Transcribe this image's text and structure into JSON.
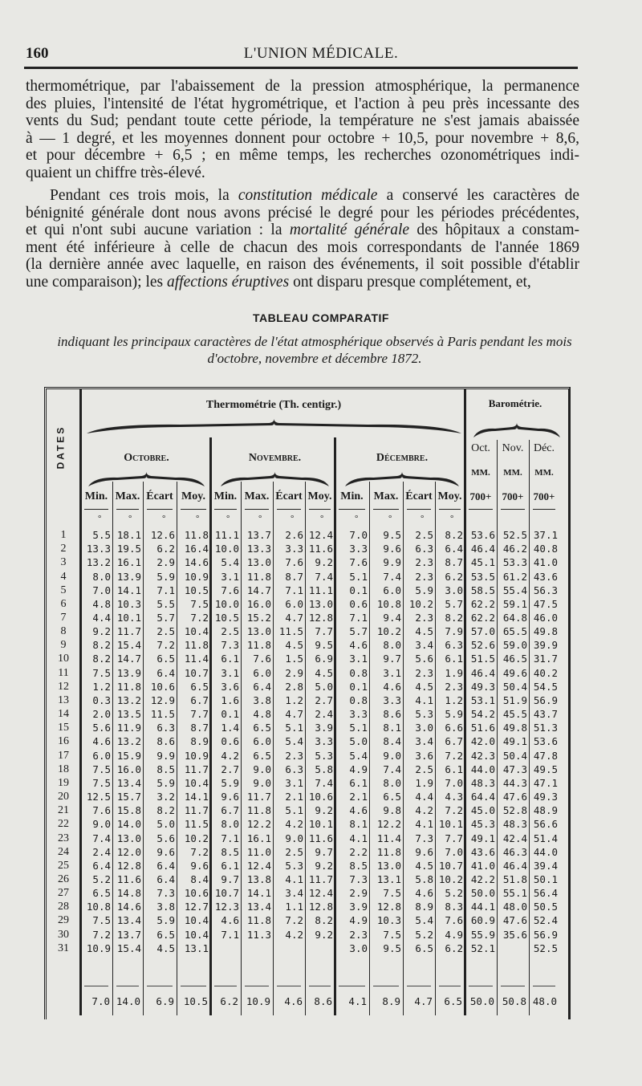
{
  "header": {
    "page_number": "160",
    "running_title": "L'UNION MÉDICALE."
  },
  "paragraph1": [
    "thermométrique, par l'abaissement de la pression atmosphérique, la permanence",
    "des pluies, l'intensité de l'état hygrométrique, et l'action à peu près incessante des",
    "vents du Sud; pendant toute cette période, la température ne s'est jamais abaissée",
    "à — 1 degré, et les moyennes donnent pour octobre + 10,5, pour novembre + 8,6,",
    "et pour décembre + 6,5 ; en même temps, les recherches ozonométriques indi-",
    "quaient un chiffre très-élevé."
  ],
  "paragraph2": [
    {
      "before": "Pendant ces trois mois, la ",
      "em": "constitution médicale",
      "after": " a conservé les caractères de"
    },
    {
      "before": "bénignité générale dont nous avons précisé le degré pour les périodes précédentes,",
      "em": "",
      "after": ""
    },
    {
      "before": "et qui n'ont subi aucune variation : la ",
      "em": "mortalité générale",
      "after": " des hôpitaux a constam-"
    },
    {
      "before": "ment été inférieure à celle de chacun des mois correspondants de l'année 1869",
      "em": "",
      "after": ""
    },
    {
      "before": "(la dernière année avec laquelle, en raison des événements, il soit possible d'établir",
      "em": "",
      "after": ""
    },
    {
      "before": "une comparaison); les ",
      "em": "affections éruptives",
      "after": " ont disparu presque complétement, et,"
    }
  ],
  "table_title": "TABLEAU COMPARATIF",
  "table_subtitle": [
    "indiquant les principaux caractères de l'état atmosphérique observés à Paris pendant les mois",
    "d'octobre, novembre et décembre 1872."
  ],
  "table": {
    "dates_label": "DATES",
    "thermo_label": "Thermométrie (Th. centigr.)",
    "baro_label": "Barométrie.",
    "months": [
      "Octobre.",
      "Novembre.",
      "Décembre."
    ],
    "baro_months": [
      "Oct.",
      "Nov.",
      "Déc."
    ],
    "baro_unit": "MM.",
    "baro_base": "700+",
    "thermo_cols": [
      "Min.",
      "Max.",
      "Écart",
      "Moy."
    ],
    "degree_mark": "°",
    "rows": [
      [
        "1",
        "5.5",
        "18.1",
        "12.6",
        "11.8",
        "11.1",
        "13.7",
        "2.6",
        "12.4",
        "7.0",
        "9.5",
        "2.5",
        "8.2",
        "53.6",
        "52.5",
        "37.1"
      ],
      [
        "2",
        "13.3",
        "19.5",
        "6.2",
        "16.4",
        "10.0",
        "13.3",
        "3.3",
        "11.6",
        "3.3",
        "9.6",
        "6.3",
        "6.4",
        "46.4",
        "46.2",
        "40.8"
      ],
      [
        "3",
        "13.2",
        "16.1",
        "2.9",
        "14.6",
        "5.4",
        "13.0",
        "7.6",
        "9.2",
        "7.6",
        "9.9",
        "2.3",
        "8.7",
        "45.1",
        "53.3",
        "41.0"
      ],
      [
        "4",
        "8.0",
        "13.9",
        "5.9",
        "10.9",
        "3.1",
        "11.8",
        "8.7",
        "7.4",
        "5.1",
        "7.4",
        "2.3",
        "6.2",
        "53.5",
        "61.2",
        "43.6"
      ],
      [
        "5",
        "7.0",
        "14.1",
        "7.1",
        "10.5",
        "7.6",
        "14.7",
        "7.1",
        "11.1",
        "0.1",
        "6.0",
        "5.9",
        "3.0",
        "58.5",
        "55.4",
        "56.3"
      ],
      [
        "6",
        "4.8",
        "10.3",
        "5.5",
        "7.5",
        "10.0",
        "16.0",
        "6.0",
        "13.0",
        "0.6",
        "10.8",
        "10.2",
        "5.7",
        "62.2",
        "59.1",
        "47.5"
      ],
      [
        "7",
        "4.4",
        "10.1",
        "5.7",
        "7.2",
        "10.5",
        "15.2",
        "4.7",
        "12.8",
        "7.1",
        "9.4",
        "2.3",
        "8.2",
        "62.2",
        "64.8",
        "46.0"
      ],
      [
        "8",
        "9.2",
        "11.7",
        "2.5",
        "10.4",
        "2.5",
        "13.0",
        "11.5",
        "7.7",
        "5.7",
        "10.2",
        "4.5",
        "7.9",
        "57.0",
        "65.5",
        "49.8"
      ],
      [
        "9",
        "8.2",
        "15.4",
        "7.2",
        "11.8",
        "7.3",
        "11.8",
        "4.5",
        "9.5",
        "4.6",
        "8.0",
        "3.4",
        "6.3",
        "52.6",
        "59.0",
        "39.9"
      ],
      [
        "10",
        "8.2",
        "14.7",
        "6.5",
        "11.4",
        "6.1",
        "7.6",
        "1.5",
        "6.9",
        "3.1",
        "9.7",
        "5.6",
        "6.1",
        "51.5",
        "46.5",
        "31.7"
      ],
      [
        "11",
        "7.5",
        "13.9",
        "6.4",
        "10.7",
        "3.1",
        "6.0",
        "2.9",
        "4.5",
        "0.8",
        "3.1",
        "2.3",
        "1.9",
        "46.4",
        "49.6",
        "40.2"
      ],
      [
        "12",
        "1.2",
        "11.8",
        "10.6",
        "6.5",
        "3.6",
        "6.4",
        "2.8",
        "5.0",
        "0.1",
        "4.6",
        "4.5",
        "2.3",
        "49.3",
        "50.4",
        "54.5"
      ],
      [
        "13",
        "0.3",
        "13.2",
        "12.9",
        "6.7",
        "1.6",
        "3.8",
        "1.2",
        "2.7",
        "0.8",
        "3.3",
        "4.1",
        "1.2",
        "53.1",
        "51.9",
        "56.9"
      ],
      [
        "14",
        "2.0",
        "13.5",
        "11.5",
        "7.7",
        "0.1",
        "4.8",
        "4.7",
        "2.4",
        "3.3",
        "8.6",
        "5.3",
        "5.9",
        "54.2",
        "45.5",
        "43.7"
      ],
      [
        "15",
        "5.6",
        "11.9",
        "6.3",
        "8.7",
        "1.4",
        "6.5",
        "5.1",
        "3.9",
        "5.1",
        "8.1",
        "3.0",
        "6.6",
        "51.6",
        "49.8",
        "51.3"
      ],
      [
        "16",
        "4.6",
        "13.2",
        "8.6",
        "8.9",
        "0.6",
        "6.0",
        "5.4",
        "3.3",
        "5.0",
        "8.4",
        "3.4",
        "6.7",
        "42.0",
        "49.1",
        "53.6"
      ],
      [
        "17",
        "6.0",
        "15.9",
        "9.9",
        "10.9",
        "4.2",
        "6.5",
        "2.3",
        "5.3",
        "5.4",
        "9.0",
        "3.6",
        "7.2",
        "42.3",
        "50.4",
        "47.8"
      ],
      [
        "18",
        "7.5",
        "16.0",
        "8.5",
        "11.7",
        "2.7",
        "9.0",
        "6.3",
        "5.8",
        "4.9",
        "7.4",
        "2.5",
        "6.1",
        "44.0",
        "47.3",
        "49.5"
      ],
      [
        "19",
        "7.5",
        "13.4",
        "5.9",
        "10.4",
        "5.9",
        "9.0",
        "3.1",
        "7.4",
        "6.1",
        "8.0",
        "1.9",
        "7.0",
        "48.3",
        "44.3",
        "47.1"
      ],
      [
        "20",
        "12.5",
        "15.7",
        "3.2",
        "14.1",
        "9.6",
        "11.7",
        "2.1",
        "10.6",
        "2.1",
        "6.5",
        "4.4",
        "4.3",
        "64.4",
        "47.6",
        "49.3"
      ],
      [
        "21",
        "7.6",
        "15.8",
        "8.2",
        "11.7",
        "6.7",
        "11.8",
        "5.1",
        "9.2",
        "4.6",
        "9.8",
        "4.2",
        "7.2",
        "45.0",
        "52.8",
        "48.9"
      ],
      [
        "22",
        "9.0",
        "14.0",
        "5.0",
        "11.5",
        "8.0",
        "12.2",
        "4.2",
        "10.1",
        "8.1",
        "12.2",
        "4.1",
        "10.1",
        "45.3",
        "48.3",
        "56.6"
      ],
      [
        "23",
        "7.4",
        "13.0",
        "5.6",
        "10.2",
        "7.1",
        "16.1",
        "9.0",
        "11.6",
        "4.1",
        "11.4",
        "7.3",
        "7.7",
        "49.1",
        "42.4",
        "51.4"
      ],
      [
        "24",
        "2.4",
        "12.0",
        "9.6",
        "7.2",
        "8.5",
        "11.0",
        "2.5",
        "9.7",
        "2.2",
        "11.8",
        "9.6",
        "7.0",
        "43.6",
        "46.3",
        "44.0"
      ],
      [
        "25",
        "6.4",
        "12.8",
        "6.4",
        "9.6",
        "6.1",
        "12.4",
        "5.3",
        "9.2",
        "8.5",
        "13.0",
        "4.5",
        "10.7",
        "41.0",
        "46.4",
        "39.4"
      ],
      [
        "26",
        "5.2",
        "11.6",
        "6.4",
        "8.4",
        "9.7",
        "13.8",
        "4.1",
        "11.7",
        "7.3",
        "13.1",
        "5.8",
        "10.2",
        "42.2",
        "51.8",
        "50.1"
      ],
      [
        "27",
        "6.5",
        "14.8",
        "7.3",
        "10.6",
        "10.7",
        "14.1",
        "3.4",
        "12.4",
        "2.9",
        "7.5",
        "4.6",
        "5.2",
        "50.0",
        "55.1",
        "56.4"
      ],
      [
        "28",
        "10.8",
        "14.6",
        "3.8",
        "12.7",
        "12.3",
        "13.4",
        "1.1",
        "12.8",
        "3.9",
        "12.8",
        "8.9",
        "8.3",
        "44.1",
        "48.0",
        "50.5"
      ],
      [
        "29",
        "7.5",
        "13.4",
        "5.9",
        "10.4",
        "4.6",
        "11.8",
        "7.2",
        "8.2",
        "4.9",
        "10.3",
        "5.4",
        "7.6",
        "60.9",
        "47.6",
        "52.4"
      ],
      [
        "30",
        "7.2",
        "13.7",
        "6.5",
        "10.4",
        "7.1",
        "11.3",
        "4.2",
        "9.2",
        "2.3",
        "7.5",
        "5.2",
        "4.9",
        "55.9",
        "35.6",
        "56.9"
      ],
      [
        "31",
        "10.9",
        "15.4",
        "4.5",
        "13.1",
        "",
        "",
        "",
        "",
        "3.0",
        "9.5",
        "6.5",
        "6.2",
        "52.1",
        "",
        "52.5"
      ]
    ],
    "averages": [
      "7.0",
      "14.0",
      "6.9",
      "10.5",
      "6.2",
      "10.9",
      "4.6",
      "8.6",
      "4.1",
      "8.9",
      "4.7",
      "6.5",
      "50.0",
      "50.8",
      "48.0"
    ]
  }
}
